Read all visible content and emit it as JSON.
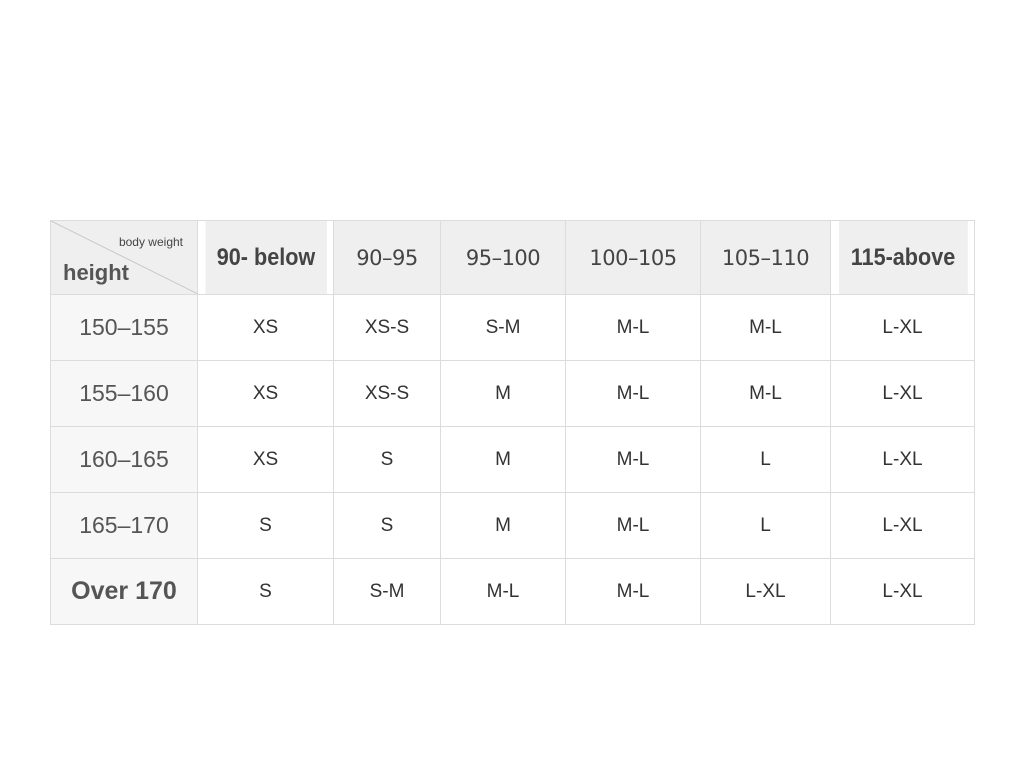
{
  "corner": {
    "column_label": "body weight",
    "row_label": "height"
  },
  "columns": [
    "90- below",
    "90–95",
    "95–100",
    "100–105",
    "105–110",
    "115-above"
  ],
  "rows": [
    {
      "height": "150–155",
      "sizes": [
        "XS",
        "XS-S",
        "S-M",
        "M-L",
        "M-L",
        "L-XL"
      ]
    },
    {
      "height": "155–160",
      "sizes": [
        "XS",
        "XS-S",
        "M",
        "M-L",
        "M-L",
        "L-XL"
      ]
    },
    {
      "height": "160–165",
      "sizes": [
        "XS",
        "S",
        "M",
        "M-L",
        "L",
        "L-XL"
      ]
    },
    {
      "height": "165–170",
      "sizes": [
        "S",
        "S",
        "M",
        "M-L",
        "L",
        "L-XL"
      ]
    },
    {
      "height": "Over 170",
      "sizes": [
        "S",
        "S-M",
        "M-L",
        "M-L",
        "L-XL",
        "L-XL"
      ]
    }
  ]
}
